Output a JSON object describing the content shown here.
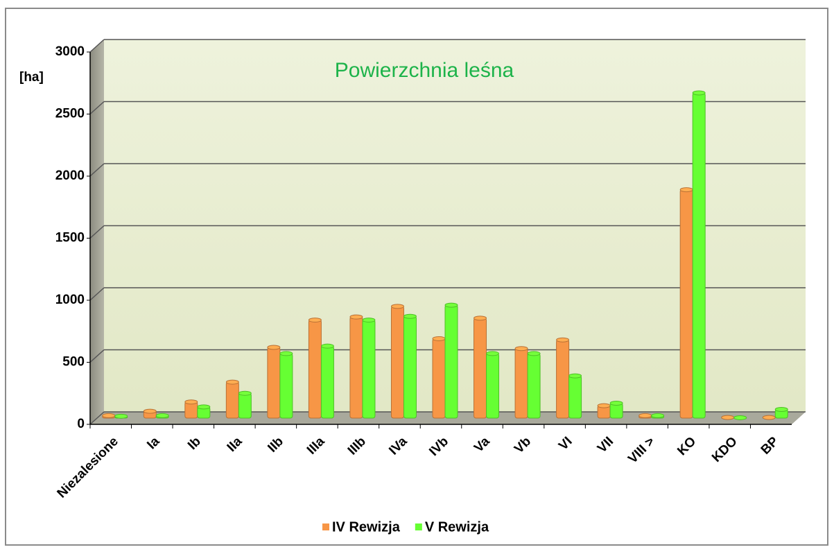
{
  "chart_data": {
    "type": "bar",
    "title": "Powierzchnia leśna",
    "y_label": "[ha]",
    "categories": [
      "Niezalesione",
      "Ia",
      "Ib",
      "IIa",
      "IIb",
      "IIIa",
      "IIIb",
      "IVa",
      "IVb",
      "Va",
      "Vb",
      "VI",
      "VII",
      "VIII >",
      "KO",
      "KDO",
      "BP"
    ],
    "series": [
      {
        "name": "IV Rewizja",
        "color": "#f79646",
        "values": [
          20,
          55,
          130,
          290,
          570,
          790,
          815,
          900,
          640,
          805,
          560,
          630,
          100,
          20,
          1840,
          5,
          5
        ]
      },
      {
        "name": "V Rewizja",
        "color": "#66ff33",
        "values": [
          15,
          20,
          90,
          200,
          520,
          580,
          790,
          820,
          910,
          520,
          520,
          340,
          120,
          20,
          2620,
          3,
          70
        ]
      }
    ],
    "ylim": [
      0,
      3000
    ],
    "yticks": [
      0,
      500,
      1000,
      1500,
      2000,
      2500,
      3000
    ],
    "grid": true,
    "legend": "bottom"
  }
}
